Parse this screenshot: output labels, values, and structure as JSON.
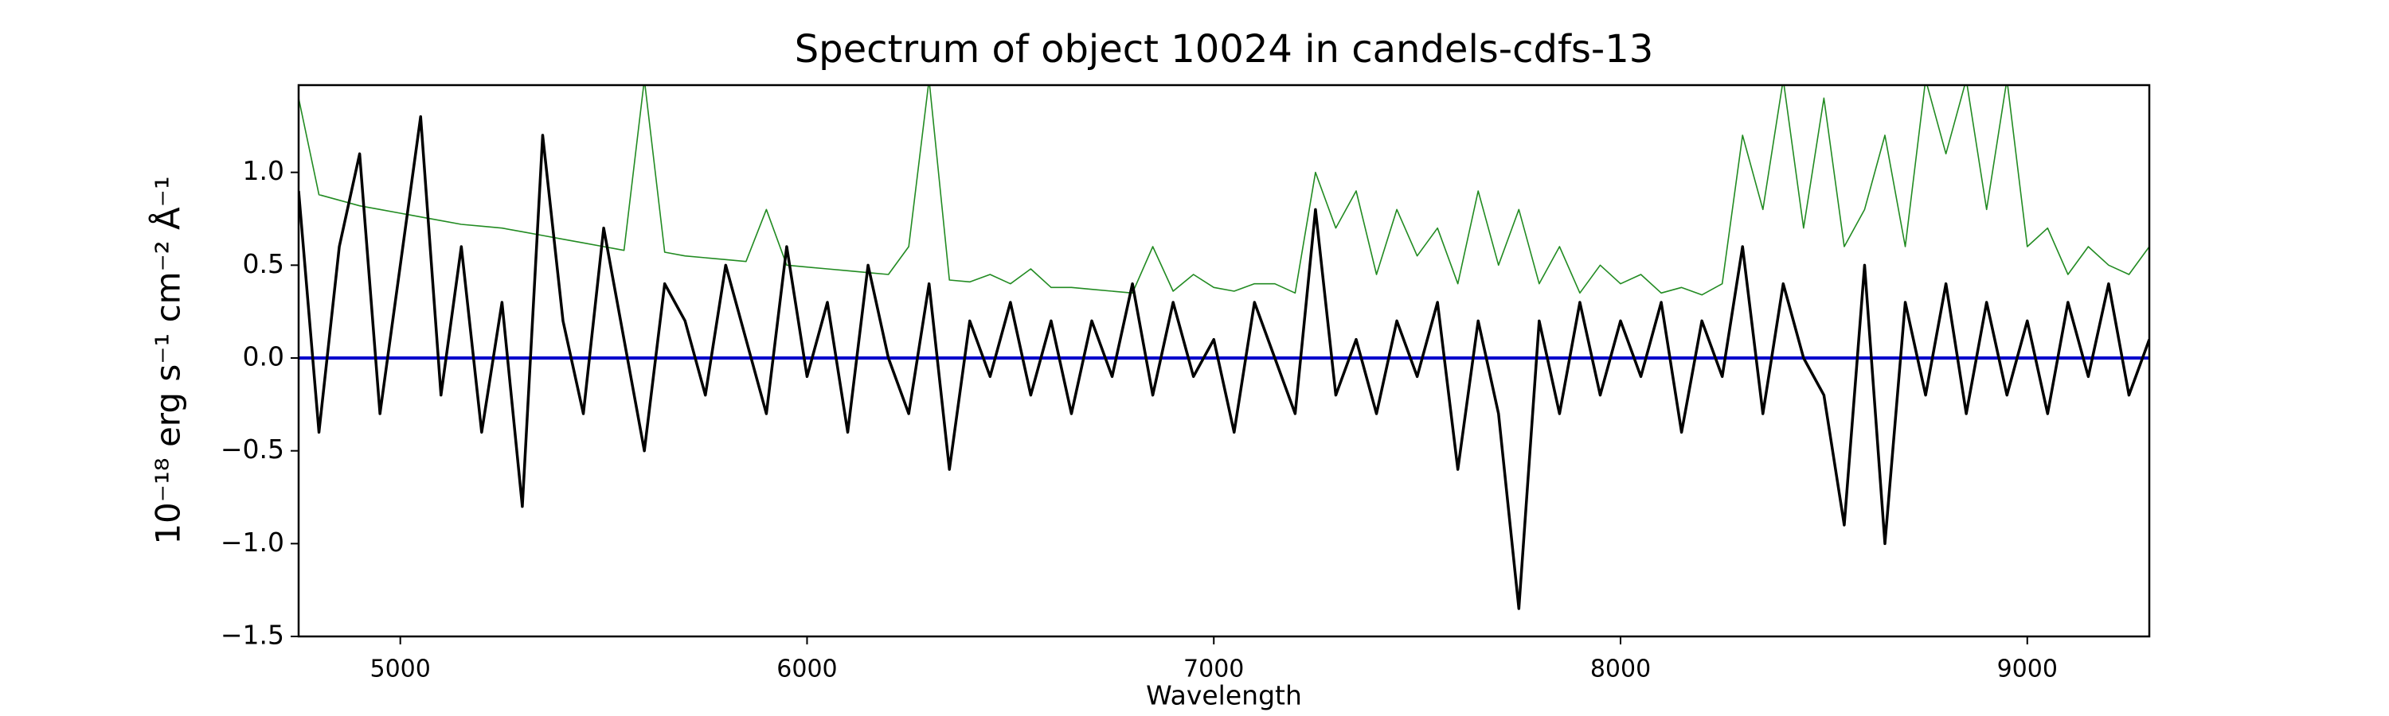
{
  "chart_data": {
    "type": "line",
    "title": "Spectrum of object 10024 in candels-cdfs-13",
    "x_label": "Wavelength",
    "y_label": "10⁻¹⁸ erg s⁻¹ cm⁻² Å⁻¹",
    "xlim": [
      4750,
      9300
    ],
    "ylim": [
      -1.5,
      1.47
    ],
    "xticks": [
      5000,
      6000,
      7000,
      8000,
      9000
    ],
    "yticks": [
      {
        "value": -1.5,
        "label": "−1.5"
      },
      {
        "value": -1.0,
        "label": "−1.0"
      },
      {
        "value": -0.5,
        "label": "−0.5"
      },
      {
        "value": 0,
        "label": "0.0"
      },
      0.5,
      {
        "value": 1.0,
        "label": "1.0"
      }
    ],
    "series": [
      {
        "color": "#228b22",
        "width": 1.6,
        "x": [
          4750,
          4800,
          4850,
          4900,
          4950,
          5000,
          5050,
          5100,
          5150,
          5200,
          5250,
          5300,
          5350,
          5400,
          5450,
          5500,
          5550,
          5600,
          5650,
          5700,
          5750,
          5800,
          5850,
          5900,
          5950,
          6000,
          6050,
          6100,
          6150,
          6200,
          6250,
          6300,
          6350,
          6400,
          6450,
          6500,
          6550,
          6600,
          6650,
          6700,
          6750,
          6800,
          6850,
          6900,
          6950,
          7000,
          7050,
          7100,
          7150,
          7200,
          7250,
          7300,
          7350,
          7400,
          7450,
          7500,
          7550,
          7600,
          7650,
          7700,
          7750,
          7800,
          7850,
          7900,
          7950,
          8000,
          8050,
          8100,
          8150,
          8200,
          8250,
          8300,
          8350,
          8400,
          8450,
          8500,
          8550,
          8600,
          8650,
          8700,
          8750,
          8800,
          8850,
          8900,
          8950,
          9000,
          9050,
          9100,
          9150,
          9200,
          9250,
          9300
        ],
        "values": [
          1.4,
          0.88,
          0.85,
          0.82,
          0.8,
          0.78,
          0.76,
          0.74,
          0.72,
          0.71,
          0.7,
          0.68,
          0.66,
          0.64,
          0.62,
          0.6,
          0.58,
          1.5,
          0.57,
          0.55,
          0.54,
          0.53,
          0.52,
          0.8,
          0.5,
          0.49,
          0.48,
          0.47,
          0.46,
          0.45,
          0.6,
          1.5,
          0.42,
          0.41,
          0.45,
          0.4,
          0.48,
          0.38,
          0.38,
          0.37,
          0.36,
          0.35,
          0.6,
          0.36,
          0.45,
          0.38,
          0.36,
          0.4,
          0.4,
          0.35,
          1.0,
          0.7,
          0.9,
          0.45,
          0.8,
          0.55,
          0.7,
          0.4,
          0.9,
          0.5,
          0.8,
          0.4,
          0.6,
          0.35,
          0.5,
          0.4,
          0.45,
          0.35,
          0.38,
          0.34,
          0.4,
          1.2,
          0.8,
          1.5,
          0.7,
          1.4,
          0.6,
          0.8,
          1.2,
          0.6,
          1.5,
          1.1,
          1.5,
          0.8,
          1.5,
          0.6,
          0.7,
          0.45,
          0.6,
          0.5,
          0.45,
          0.6
        ]
      },
      {
        "color": "#0000cd",
        "width": 4,
        "x": [
          4750,
          9300
        ],
        "values": [
          0,
          0
        ]
      },
      {
        "color": "#000000",
        "width": 3.5,
        "x": [
          4750,
          4800,
          4850,
          4900,
          4950,
          5000,
          5050,
          5100,
          5150,
          5200,
          5250,
          5300,
          5350,
          5400,
          5450,
          5500,
          5550,
          5600,
          5650,
          5700,
          5750,
          5800,
          5850,
          5900,
          5950,
          6000,
          6050,
          6100,
          6150,
          6200,
          6250,
          6300,
          6350,
          6400,
          6450,
          6500,
          6550,
          6600,
          6650,
          6700,
          6750,
          6800,
          6850,
          6900,
          6950,
          7000,
          7050,
          7100,
          7150,
          7200,
          7250,
          7300,
          7350,
          7400,
          7450,
          7500,
          7550,
          7600,
          7650,
          7700,
          7750,
          7800,
          7850,
          7900,
          7950,
          8000,
          8050,
          8100,
          8150,
          8200,
          8250,
          8300,
          8350,
          8400,
          8450,
          8500,
          8550,
          8600,
          8650,
          8700,
          8750,
          8800,
          8850,
          8900,
          8950,
          9000,
          9050,
          9100,
          9150,
          9200,
          9250,
          9300
        ],
        "values": [
          0.9,
          -0.4,
          0.6,
          1.1,
          -0.3,
          0.5,
          1.3,
          -0.2,
          0.6,
          -0.4,
          0.3,
          -0.8,
          1.2,
          0.2,
          -0.3,
          0.7,
          0.1,
          -0.5,
          0.4,
          0.2,
          -0.2,
          0.5,
          0.1,
          -0.3,
          0.6,
          -0.1,
          0.3,
          -0.4,
          0.5,
          0.0,
          -0.3,
          0.4,
          -0.6,
          0.2,
          -0.1,
          0.3,
          -0.2,
          0.2,
          -0.3,
          0.2,
          -0.1,
          0.4,
          -0.2,
          0.3,
          -0.1,
          0.1,
          -0.4,
          0.3,
          0.0,
          -0.3,
          0.8,
          -0.2,
          0.1,
          -0.3,
          0.2,
          -0.1,
          0.3,
          -0.6,
          0.2,
          -0.3,
          -1.35,
          0.2,
          -0.3,
          0.3,
          -0.2,
          0.2,
          -0.1,
          0.3,
          -0.4,
          0.2,
          -0.1,
          0.6,
          -0.3,
          0.4,
          0.0,
          -0.2,
          -0.9,
          0.5,
          -1.0,
          0.3,
          -0.2,
          0.4,
          -0.3,
          0.3,
          -0.2,
          0.2,
          -0.3,
          0.3,
          -0.1,
          0.4,
          -0.2,
          0.1
        ]
      }
    ]
  }
}
